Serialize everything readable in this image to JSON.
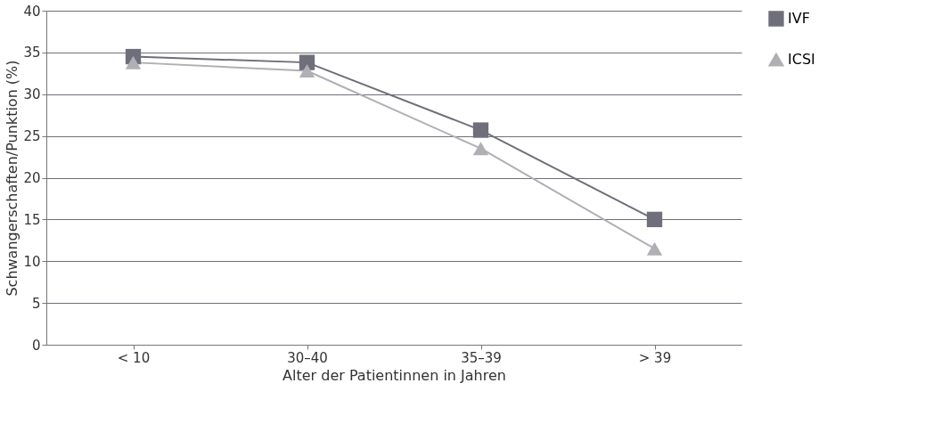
{
  "chart_data": {
    "type": "line",
    "xlabel": "Alter der Patientinnen in Jahren",
    "ylabel": "Schwangerschaften/Punktion (%)",
    "categories": [
      "< 10",
      "30–40",
      "35–39",
      "> 39"
    ],
    "series": [
      {
        "name": "IVF",
        "color": "#6e6f7a",
        "marker": "square",
        "values": [
          34.5,
          33.8,
          25.7,
          15
        ]
      },
      {
        "name": "ICSI",
        "color": "#b0afb4",
        "marker": "triangle",
        "values": [
          33.8,
          32.8,
          23.5,
          11.5
        ]
      }
    ],
    "ylim": [
      0,
      40
    ],
    "yticks": [
      0,
      5,
      10,
      15,
      20,
      25,
      30,
      35,
      40
    ],
    "grid": "y",
    "legend": "right",
    "line_style": "solid"
  }
}
